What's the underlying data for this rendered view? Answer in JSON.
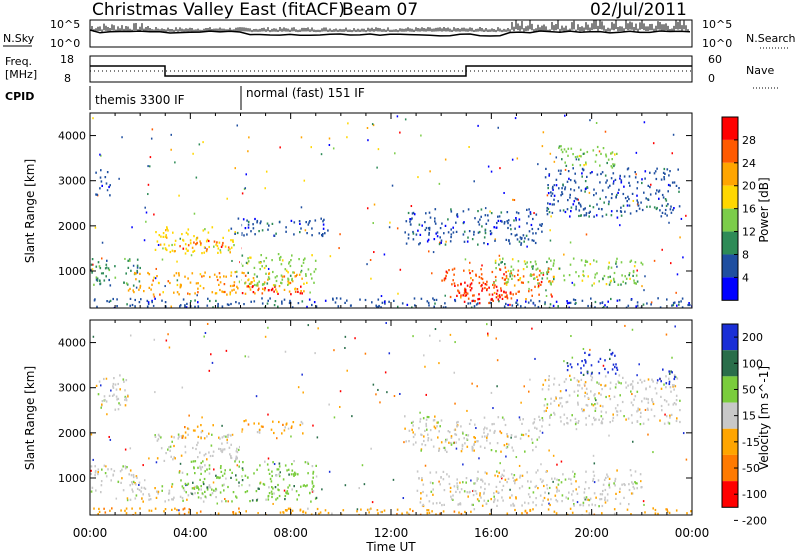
{
  "header": {
    "title": "Christmas Valley East (fitACF)",
    "beam": "Beam 07",
    "date": "02/Jul/2011"
  },
  "top_panels": {
    "nsky_label": "N.Sky",
    "nsky_tick_top": "10^5",
    "nsky_tick_bottom": "10^0",
    "nsearch_label": "N.Search",
    "nsearch_tick_top": "10^5",
    "nsearch_tick_bottom": "10^0",
    "freq_label_1": "Freq.",
    "freq_label_2": "[MHz]",
    "freq_tick_top": "18",
    "freq_tick_bottom": "8",
    "nave_label": "Nave",
    "nave_tick_top": "60",
    "nave_tick_bottom": "0",
    "cpid_label": "CPID",
    "cpid_mode_1": "themis 3300 IF",
    "cpid_mode_2": "normal (fast) 151 IF"
  },
  "chart_data": [
    {
      "type": "heatmap",
      "title": "",
      "xlabel": "Time UT",
      "ylabel": "Slant Range [km]",
      "xticks": [
        "00:00",
        "04:00",
        "08:00",
        "12:00",
        "16:00",
        "20:00",
        "00:00"
      ],
      "yticks": [
        "1000",
        "2000",
        "3000",
        "4000"
      ],
      "ylim": [
        180,
        4500
      ],
      "colorbar_label": "Power [dB]",
      "colorbar_ticks": [
        "4",
        "8",
        "12",
        "16",
        "20",
        "24",
        "28"
      ],
      "colors": [
        "#0000ff",
        "#1f4fa0",
        "#2e8b57",
        "#7ccd4a",
        "#ffd700",
        "#ffa500",
        "#ff5a00",
        "#ff0000"
      ],
      "regions": [
        {
          "t0": 0.0,
          "t1": 2.0,
          "r0": 700,
          "r1": 1300,
          "level": 2
        },
        {
          "t0": 0.2,
          "t1": 0.8,
          "r0": 2700,
          "r1": 3300,
          "level": 1
        },
        {
          "t0": 2.5,
          "t1": 5.8,
          "r0": 1400,
          "r1": 2000,
          "level": 4
        },
        {
          "t0": 3.5,
          "t1": 5.5,
          "r0": 1500,
          "r1": 1700,
          "level": 6
        },
        {
          "t0": 5.5,
          "t1": 9.5,
          "r0": 1800,
          "r1": 2200,
          "level": 1
        },
        {
          "t0": 1.5,
          "t1": 8.5,
          "r0": 500,
          "r1": 1000,
          "level": 5
        },
        {
          "t0": 6.0,
          "t1": 8.5,
          "r0": 500,
          "r1": 700,
          "level": 7
        },
        {
          "t0": 5.8,
          "t1": 9.0,
          "r0": 700,
          "r1": 1400,
          "level": 3
        },
        {
          "t0": 0.0,
          "t1": 24.0,
          "r0": 200,
          "r1": 420,
          "level": 1
        },
        {
          "t0": 12.5,
          "t1": 18.0,
          "r0": 1600,
          "r1": 2400,
          "level": 1
        },
        {
          "t0": 14.0,
          "t1": 18.5,
          "r0": 400,
          "r1": 1100,
          "level": 6
        },
        {
          "t0": 14.5,
          "t1": 16.5,
          "r0": 300,
          "r1": 800,
          "level": 7
        },
        {
          "t0": 16.0,
          "t1": 22.0,
          "r0": 700,
          "r1": 1300,
          "level": 3
        },
        {
          "t0": 18.0,
          "t1": 23.5,
          "r0": 2200,
          "r1": 3300,
          "level": 1
        },
        {
          "t0": 18.5,
          "t1": 21.0,
          "r0": 3300,
          "r1": 3800,
          "level": 3
        }
      ]
    },
    {
      "type": "heatmap",
      "title": "",
      "xlabel": "Time UT",
      "ylabel": "Slant Range [km]",
      "xticks": [
        "00:00",
        "04:00",
        "08:00",
        "12:00",
        "16:00",
        "20:00",
        "00:00"
      ],
      "yticks": [
        "1000",
        "2000",
        "3000",
        "4000"
      ],
      "ylim": [
        180,
        4500
      ],
      "colorbar_label": "Velocity [m s^-1]",
      "colorbar_ticks": [
        "200",
        "100",
        "50",
        "15",
        "-15",
        "-50",
        "-100",
        "-200"
      ],
      "colors": [
        "#1a2fd6",
        "#2a6e4a",
        "#7acc3c",
        "#c8c8c8",
        "#ffa500",
        "#ff7a00",
        "#ff0000"
      ],
      "regions": [
        {
          "t0": 0.0,
          "t1": 2.0,
          "r0": 700,
          "r1": 1300,
          "level": 3
        },
        {
          "t0": 0.2,
          "t1": 1.5,
          "r0": 2500,
          "r1": 3300,
          "level": 3
        },
        {
          "t0": 2.5,
          "t1": 6.0,
          "r0": 1400,
          "r1": 2000,
          "level": 3
        },
        {
          "t0": 3.5,
          "t1": 5.0,
          "r0": 1900,
          "r1": 2200,
          "level": 4
        },
        {
          "t0": 6.0,
          "t1": 8.5,
          "r0": 2000,
          "r1": 2300,
          "level": 4
        },
        {
          "t0": 1.5,
          "t1": 5.5,
          "r0": 500,
          "r1": 900,
          "level": 3
        },
        {
          "t0": 3.5,
          "t1": 9.0,
          "r0": 500,
          "r1": 1400,
          "level": 2
        },
        {
          "t0": 0.0,
          "t1": 24.0,
          "r0": 200,
          "r1": 350,
          "level": 4
        },
        {
          "t0": 12.5,
          "t1": 18.0,
          "r0": 1600,
          "r1": 2400,
          "level": 3
        },
        {
          "t0": 13.0,
          "t1": 22.0,
          "r0": 400,
          "r1": 1200,
          "level": 3
        },
        {
          "t0": 18.0,
          "t1": 23.5,
          "r0": 2200,
          "r1": 3300,
          "level": 3
        },
        {
          "t0": 19.0,
          "t1": 21.0,
          "r0": 3300,
          "r1": 3800,
          "level": 0
        },
        {
          "t0": 22.5,
          "t1": 23.3,
          "r0": 3100,
          "r1": 3500,
          "level": 0
        }
      ]
    }
  ]
}
